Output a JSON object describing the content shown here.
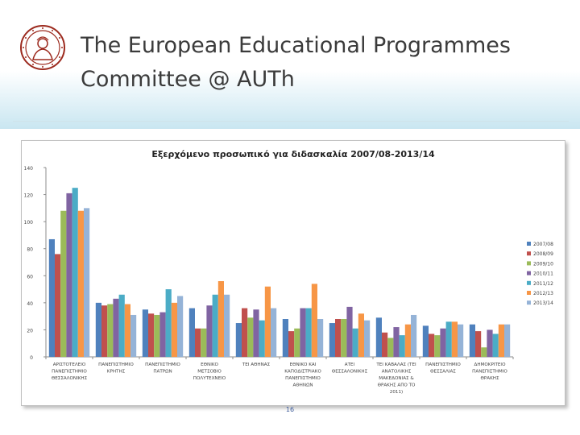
{
  "slide": {
    "title_line1": "The European Educational Programmes",
    "title_line2": "Committee @ AUTh",
    "page_number": "16"
  },
  "chart_data": {
    "type": "bar",
    "title": "Εξερχόμενο προσωπικό για διδασκαλία 2007/08-2013/14",
    "xlabel": "",
    "ylabel": "",
    "ylim": [
      0,
      140
    ],
    "yticks": [
      0,
      20,
      40,
      60,
      80,
      100,
      120,
      140
    ],
    "grid": false,
    "legend_position": "right",
    "categories": [
      [
        "ΑΡΙΣΤΟΤΕΛΕΙΟ",
        "ΠΑΝΕΠΙΣΤΗΜΙΟ",
        "ΘΕΣΣΑΛΟΝΙΚΗΣ"
      ],
      [
        "ΠΑΝΕΠΙΣΤΗΜΙΟ",
        "ΚΡΗΤΗΣ"
      ],
      [
        "ΠΑΝΕΠΙΣΤΗΜΙΟ",
        "ΠΑΤΡΩΝ"
      ],
      [
        "ΕΘΝΙΚΟ",
        "ΜΕΤΣΟΒΙΟ",
        "ΠΟΛΥΤΕΧΝΕΙΟ"
      ],
      [
        "ΤΕΙ ΑΘΗΝΑΣ"
      ],
      [
        "ΕΘΝΙΚΟ ΚΑΙ",
        "ΚΑΠΟΔΙΣΤΡΙΑΚΟ",
        "ΠΑΝΕΠΙΣΤΗΜΙΟ",
        "ΑΘΗΝΩΝ"
      ],
      [
        "ΑΤΕΙ",
        "ΘΕΣΣΑΛΟΝΙΚΗΣ"
      ],
      [
        "ΤΕΙ ΚΑΒΑΛΑΣ (ΤΕΙ",
        "ΑΝΑΤΟΛΙΚΗΣ",
        "ΜΑΚΕΔΟΝΙΑΣ &",
        "ΘΡΑΚΗΣ ΑΠΟ ΤΟ",
        "2011)"
      ],
      [
        "ΠΑΝΕΠΙΣΤΗΜΙΟ",
        "ΘΕΣΣΑΛΙΑΣ"
      ],
      [
        "ΔΗΜΟΚΡΙΤΕΙΟ",
        "ΠΑΝΕΠΙΣΤΗΜΙΟ",
        "ΘΡΑΚΗΣ"
      ]
    ],
    "series": [
      {
        "name": "2007/08",
        "color": "#4f81bd",
        "values": [
          87,
          40,
          35,
          36,
          25,
          28,
          25,
          29,
          23,
          24
        ]
      },
      {
        "name": "2008/09",
        "color": "#c0504d",
        "values": [
          76,
          38,
          32,
          21,
          36,
          19,
          28,
          18,
          17,
          19
        ]
      },
      {
        "name": "2009/10",
        "color": "#9bbb59",
        "values": [
          108,
          39,
          31,
          21,
          29,
          21,
          28,
          14,
          16,
          7
        ]
      },
      {
        "name": "2010/11",
        "color": "#8064a2",
        "values": [
          121,
          43,
          33,
          38,
          35,
          36,
          37,
          22,
          21,
          20
        ]
      },
      {
        "name": "2011/12",
        "color": "#4bacc6",
        "values": [
          125,
          46,
          50,
          46,
          27,
          36,
          21,
          16,
          26,
          17
        ]
      },
      {
        "name": "2012/13",
        "color": "#f79646",
        "values": [
          108,
          39,
          40,
          56,
          52,
          54,
          32,
          24,
          26,
          24
        ]
      },
      {
        "name": "2013/14",
        "color": "#95b3d7",
        "values": [
          110,
          31,
          45,
          46,
          36,
          28,
          27,
          31,
          24,
          24
        ]
      }
    ]
  }
}
